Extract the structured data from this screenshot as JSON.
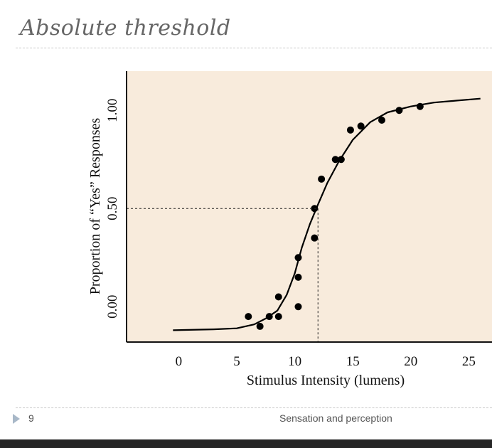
{
  "slide": {
    "title": "Absolute threshold",
    "number": "9",
    "footer": "Sensation and perception"
  },
  "colors": {
    "plot_background": "#f8ebdc",
    "axis": "#111111",
    "curve": "#000000",
    "points": "#000000",
    "bottom_bar": "#262626"
  },
  "chart_data": {
    "type": "scatter",
    "title": "",
    "xlabel": "Stimulus Intensity (lumens)",
    "ylabel": "Proportion of “Yes” Responses",
    "x_ticks": [
      0,
      5,
      10,
      15,
      20,
      25
    ],
    "y_ticks": [
      {
        "value": 0.0,
        "label": "0.00"
      },
      {
        "value": 0.5,
        "label": "0.50"
      },
      {
        "value": 1.0,
        "label": "1.00"
      }
    ],
    "xlim": [
      -4.5,
      27
    ],
    "ylim": [
      -0.18,
      1.2
    ],
    "grid": false,
    "threshold": {
      "x": 12,
      "y": 0.5
    },
    "points": [
      {
        "x": 6,
        "y": -0.05
      },
      {
        "x": 7,
        "y": -0.1
      },
      {
        "x": 7.8,
        "y": -0.05
      },
      {
        "x": 8.6,
        "y": -0.05
      },
      {
        "x": 8.6,
        "y": 0.05
      },
      {
        "x": 10.3,
        "y": 0.0
      },
      {
        "x": 10.3,
        "y": 0.15
      },
      {
        "x": 10.3,
        "y": 0.25
      },
      {
        "x": 11.7,
        "y": 0.35
      },
      {
        "x": 11.7,
        "y": 0.5
      },
      {
        "x": 12.3,
        "y": 0.65
      },
      {
        "x": 13.5,
        "y": 0.75
      },
      {
        "x": 14,
        "y": 0.75
      },
      {
        "x": 14.8,
        "y": 0.9
      },
      {
        "x": 15.7,
        "y": 0.92
      },
      {
        "x": 17.5,
        "y": 0.95
      },
      {
        "x": 19,
        "y": 1.0
      },
      {
        "x": 20.8,
        "y": 1.02
      }
    ],
    "curve": [
      {
        "x": -0.5,
        "y": -0.12
      },
      {
        "x": 3,
        "y": -0.115
      },
      {
        "x": 5,
        "y": -0.11
      },
      {
        "x": 6.5,
        "y": -0.09
      },
      {
        "x": 7.5,
        "y": -0.06
      },
      {
        "x": 8.5,
        "y": -0.02
      },
      {
        "x": 9.3,
        "y": 0.06
      },
      {
        "x": 10,
        "y": 0.17
      },
      {
        "x": 10.6,
        "y": 0.3
      },
      {
        "x": 11.3,
        "y": 0.42
      },
      {
        "x": 12,
        "y": 0.52
      },
      {
        "x": 12.8,
        "y": 0.63
      },
      {
        "x": 13.8,
        "y": 0.74
      },
      {
        "x": 15,
        "y": 0.85
      },
      {
        "x": 16.5,
        "y": 0.94
      },
      {
        "x": 18,
        "y": 0.99
      },
      {
        "x": 20,
        "y": 1.02
      },
      {
        "x": 22,
        "y": 1.04
      },
      {
        "x": 24,
        "y": 1.05
      },
      {
        "x": 26,
        "y": 1.06
      }
    ]
  }
}
